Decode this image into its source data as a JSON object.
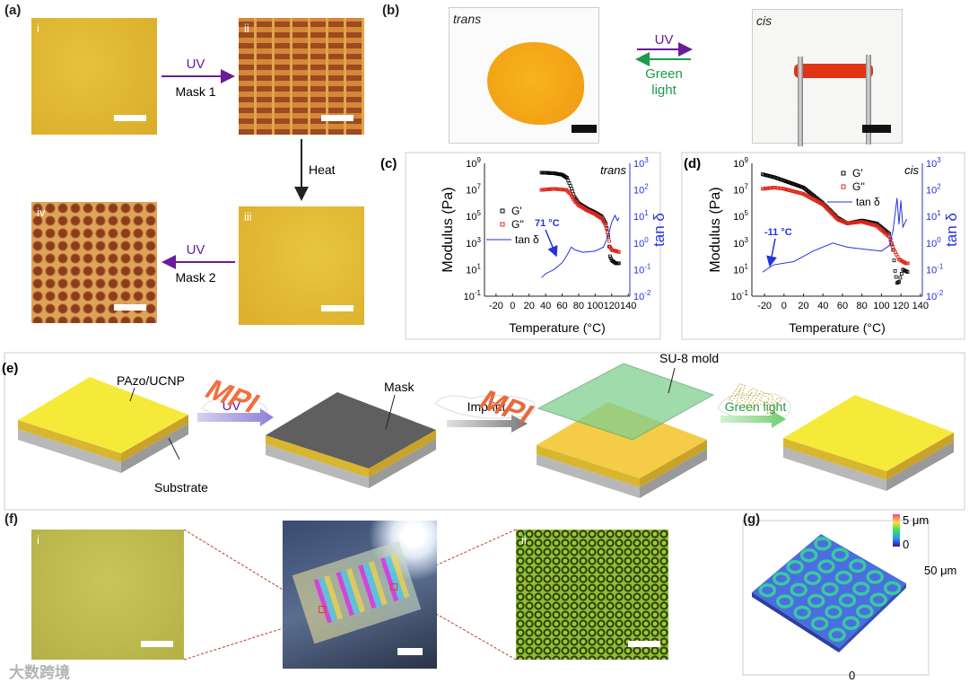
{
  "panels": {
    "a": {
      "label": "(a)",
      "sub": [
        "i",
        "ii",
        "iii",
        "iv"
      ],
      "arrow1_top": "UV",
      "arrow1_bottom": "Mask 1",
      "arrow2": "Heat",
      "arrow3_top": "UV",
      "arrow3_bottom": "Mask 2"
    },
    "b": {
      "label": "(b)",
      "left": "trans",
      "right": "cis",
      "uv": "UV",
      "green1": "Green",
      "green2": "light"
    },
    "c": {
      "label": "(c)"
    },
    "d": {
      "label": "(d)"
    },
    "e": {
      "label": "(e)",
      "pazo": "PAzo/UCNP",
      "substrate": "Substrate",
      "mask": "Mask",
      "mpi": "MPI",
      "uv": "UV",
      "imprint": "Imprint",
      "mold": "SU-8 mold",
      "green": "Green light"
    },
    "f": {
      "label": "(f)",
      "sub": [
        "i",
        "ii"
      ]
    },
    "g": {
      "label": "(g)",
      "cb_max": "5 μm",
      "cb_min": "0",
      "axis_y": "50 μm",
      "axis_x": "0"
    }
  },
  "watermark": "大数跨境",
  "colors": {
    "g1": "#000000",
    "g2": "#e0261b",
    "tan": "#2233dd",
    "uv": "#6a1b9a",
    "green": "#1f9a4a"
  },
  "chart_data": [
    {
      "type": "scatter",
      "panel": "c",
      "title": "trans",
      "xlabel": "Temperature (°C)",
      "ylabel": "Modulus (Pa)",
      "y2label": "tan δ",
      "xlim": [
        -34,
        142
      ],
      "ylim_log": [
        -1,
        9
      ],
      "y2lim_log": [
        -2,
        3
      ],
      "xticks": [
        "-20",
        "0",
        "20",
        "40",
        "60",
        "80",
        "100",
        "120",
        "140"
      ],
      "xtick_values": [
        -20,
        0,
        20,
        40,
        60,
        80,
        100,
        120,
        140
      ],
      "yticks": [
        "10",
        "10",
        "10",
        "10",
        "10",
        "10"
      ],
      "ytick_exp": [
        "-1",
        "1",
        "3",
        "5",
        "7",
        "9"
      ],
      "y2ticks": [
        "10",
        "10",
        "10",
        "10",
        "10",
        "10"
      ],
      "y2tick_exp": [
        "-2",
        "-1",
        "0",
        "1",
        "2",
        "3"
      ],
      "legend": [
        "G'",
        "G''",
        "tan δ"
      ],
      "annotation": "71 °C",
      "series": [
        {
          "name": "G'",
          "x": [
            35,
            50,
            60,
            66,
            70,
            75,
            80,
            90,
            100,
            108,
            113,
            116,
            118,
            120,
            125,
            130
          ],
          "y": [
            200000000.0,
            180000000.0,
            140000000.0,
            80000000.0,
            20000000.0,
            3000000.0,
            1000000.0,
            400000.0,
            200000.0,
            100000.0,
            30000.0,
            3000.0,
            100.0,
            50.0,
            30.0,
            30.0
          ]
        },
        {
          "name": "G''",
          "x": [
            35,
            50,
            65,
            70,
            75,
            80,
            90,
            100,
            108,
            113,
            116,
            118,
            120,
            125,
            130
          ],
          "y": [
            10000000.0,
            12000000.0,
            10000000.0,
            5000000.0,
            1500000.0,
            700000.0,
            300000.0,
            150000.0,
            70000.0,
            20000.0,
            4000.0,
            500.0,
            300.0,
            250.0,
            200.0
          ]
        },
        {
          "name": "tan δ",
          "x": [
            35,
            40,
            50,
            60,
            66,
            71,
            76,
            85,
            100,
            110,
            116,
            120,
            124,
            127,
            129
          ],
          "y": [
            0.05,
            0.07,
            0.1,
            0.18,
            0.35,
            0.7,
            0.55,
            0.45,
            0.5,
            0.7,
            2,
            6,
            11,
            7,
            9
          ]
        }
      ]
    },
    {
      "type": "scatter",
      "panel": "d",
      "title": "cis",
      "xlabel": "Temperature (°C)",
      "ylabel": "Modulus (Pa)",
      "y2label": "tan δ",
      "xlim": [
        -33,
        142
      ],
      "ylim_log": [
        -1,
        9
      ],
      "y2lim_log": [
        -2,
        3
      ],
      "xticks": [
        "-20",
        "0",
        "20",
        "40",
        "60",
        "80",
        "100",
        "120",
        "140"
      ],
      "xtick_values": [
        -20,
        0,
        20,
        40,
        60,
        80,
        100,
        120,
        140
      ],
      "yticks": [
        "10",
        "10",
        "10",
        "10",
        "10",
        "10"
      ],
      "ytick_exp": [
        "-1",
        "1",
        "3",
        "5",
        "7",
        "9"
      ],
      "y2ticks": [
        "10",
        "10",
        "10",
        "10",
        "10",
        "10"
      ],
      "y2tick_exp": [
        "-2",
        "-1",
        "0",
        "1",
        "2",
        "3"
      ],
      "legend": [
        "G'",
        "G''",
        "tan δ"
      ],
      "annotation": "-11 °C",
      "series": [
        {
          "name": "G'",
          "x": [
            -22,
            -10,
            0,
            20,
            40,
            55,
            65,
            80,
            95,
            108,
            112,
            114,
            116,
            118,
            122,
            128
          ],
          "y": [
            150000000.0,
            90000000.0,
            50000000.0,
            15000000.0,
            1000000.0,
            80000.0,
            30000.0,
            50000.0,
            30000.0,
            5000.0,
            300.0,
            8.0,
            1.0,
            1.2,
            10.0,
            6.0
          ]
        },
        {
          "name": "G''",
          "x": [
            -22,
            -10,
            0,
            20,
            40,
            55,
            65,
            80,
            95,
            108,
            113,
            118,
            125,
            128
          ],
          "y": [
            12000000.0,
            15000000.0,
            12000000.0,
            5000000.0,
            800000.0,
            60000.0,
            30000.0,
            40000.0,
            20000.0,
            3000.0,
            300.0,
            60.0,
            30.0,
            30.0
          ]
        },
        {
          "name": "tan δ",
          "x": [
            -22,
            -11,
            10,
            30,
            50,
            65,
            80,
            100,
            108,
            112,
            116,
            118,
            120,
            122,
            126
          ],
          "y": [
            0.08,
            0.15,
            0.2,
            0.5,
            1.0,
            0.7,
            0.6,
            0.5,
            0.8,
            3,
            50,
            5,
            40,
            4,
            8
          ]
        }
      ]
    }
  ]
}
